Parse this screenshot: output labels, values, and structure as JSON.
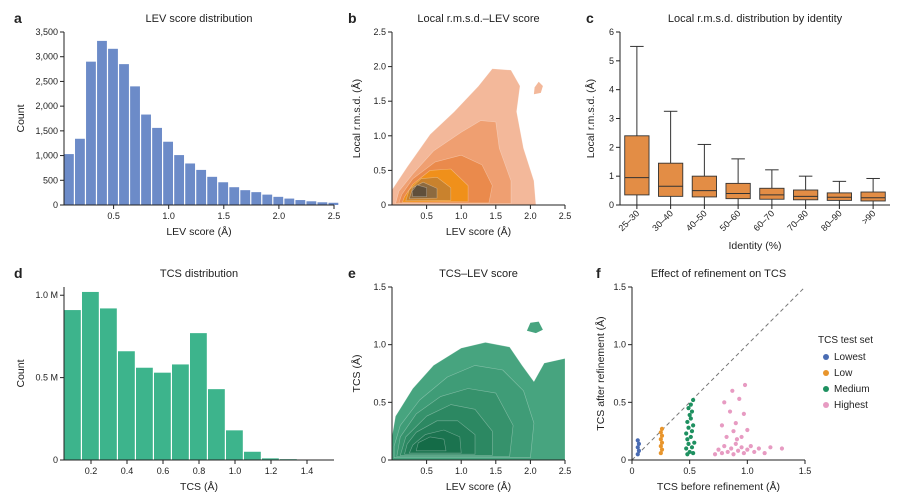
{
  "colors": {
    "blue": "#6c8bc8",
    "green": "#3db48c",
    "orange": "#e38d45",
    "lowest": "#4a6cb3",
    "low": "#e8952c",
    "medium": "#1e9060",
    "highest": "#e79bc2",
    "kde_orange": [
      "#f3b89a",
      "#ef9f71",
      "#ea8a4c",
      "#f0901a",
      "#c9822d",
      "#8d6a3f",
      "#5f4f3b"
    ],
    "kde_green": [
      "#47a47f",
      "#3f9c77",
      "#36926c",
      "#2c8862",
      "#237d58",
      "#1b734f",
      "#146b47"
    ]
  },
  "chart_data": [
    {
      "letter": "a",
      "type": "bar",
      "title": "LEV score distribution",
      "xlabel": "LEV score (Å)",
      "ylabel": "Count",
      "xlim": [
        0.05,
        2.5
      ],
      "ylim": [
        0,
        3500
      ],
      "bin_start": 0.05,
      "bin_width": 0.1,
      "values": [
        1030,
        1340,
        2900,
        3320,
        3160,
        2850,
        2400,
        1830,
        1560,
        1280,
        1010,
        840,
        710,
        570,
        460,
        360,
        300,
        260,
        210,
        165,
        130,
        100,
        75,
        55,
        45
      ],
      "xticks": [
        0.5,
        1.0,
        1.5,
        2.0,
        2.5
      ],
      "xtick_labels": [
        "0.5",
        "1.0",
        "1.5",
        "2.0",
        "2.5"
      ],
      "yticks": [
        0,
        500,
        1000,
        1500,
        2000,
        2500,
        3000,
        3500
      ],
      "ytick_labels": [
        "0",
        "500",
        "1,000",
        "1,500",
        "2,000",
        "2,500",
        "3,000",
        "3,500"
      ]
    },
    {
      "letter": "b",
      "type": "contour",
      "title": "Local r.m.s.d.–LEV score",
      "xlabel": "LEV score (Å)",
      "ylabel": "Local r.m.s.d. (Å)",
      "xlim": [
        0,
        2.5
      ],
      "ylim": [
        0,
        2.5
      ],
      "xticks": [
        0.5,
        1.0,
        1.5,
        2.0,
        2.5
      ],
      "xtick_labels": [
        "0.5",
        "1.0",
        "1.5",
        "2.0",
        "2.5"
      ],
      "yticks": [
        0,
        0.5,
        1.0,
        1.5,
        2.0,
        2.5
      ],
      "ytick_labels": [
        "0",
        "0.5",
        "1.0",
        "1.5",
        "2.0",
        "2.5"
      ],
      "levels": [
        [
          [
            0.0,
            0.0
          ],
          [
            2.08,
            0.0
          ],
          [
            2.05,
            0.35
          ],
          [
            1.9,
            0.82
          ],
          [
            1.8,
            1.35
          ],
          [
            1.85,
            1.72
          ],
          [
            1.72,
            1.95
          ],
          [
            1.45,
            1.97
          ],
          [
            1.25,
            1.72
          ],
          [
            0.9,
            1.35
          ],
          [
            0.55,
            1.02
          ],
          [
            0.22,
            0.55
          ],
          [
            0.0,
            0.22
          ]
        ],
        [
          [
            0.05,
            0.02
          ],
          [
            1.72,
            0.02
          ],
          [
            1.72,
            0.35
          ],
          [
            1.55,
            0.82
          ],
          [
            1.5,
            1.2
          ],
          [
            1.28,
            1.22
          ],
          [
            1.0,
            1.05
          ],
          [
            0.6,
            0.78
          ],
          [
            0.3,
            0.45
          ],
          [
            0.1,
            0.2
          ]
        ],
        [
          [
            0.1,
            0.03
          ],
          [
            1.4,
            0.03
          ],
          [
            1.45,
            0.28
          ],
          [
            1.3,
            0.58
          ],
          [
            1.0,
            0.72
          ],
          [
            0.62,
            0.62
          ],
          [
            0.3,
            0.38
          ],
          [
            0.14,
            0.15
          ]
        ],
        [
          [
            0.15,
            0.04
          ],
          [
            1.1,
            0.05
          ],
          [
            1.1,
            0.28
          ],
          [
            0.85,
            0.52
          ],
          [
            0.55,
            0.5
          ],
          [
            0.3,
            0.3
          ],
          [
            0.18,
            0.12
          ]
        ],
        [
          [
            0.2,
            0.06
          ],
          [
            0.85,
            0.07
          ],
          [
            0.85,
            0.25
          ],
          [
            0.65,
            0.4
          ],
          [
            0.42,
            0.38
          ],
          [
            0.25,
            0.22
          ]
        ],
        [
          [
            0.25,
            0.09
          ],
          [
            0.65,
            0.1
          ],
          [
            0.65,
            0.24
          ],
          [
            0.45,
            0.33
          ],
          [
            0.3,
            0.25
          ]
        ],
        [
          [
            0.3,
            0.12
          ],
          [
            0.5,
            0.12
          ],
          [
            0.5,
            0.25
          ],
          [
            0.36,
            0.29
          ],
          [
            0.29,
            0.2
          ]
        ]
      ],
      "blobs": [
        [
          [
            2.05,
            1.6
          ],
          [
            2.15,
            1.62
          ],
          [
            2.18,
            1.72
          ],
          [
            2.12,
            1.78
          ],
          [
            2.06,
            1.7
          ]
        ]
      ]
    },
    {
      "letter": "c",
      "type": "box",
      "title": "Local r.m.s.d. distribution by identity",
      "xlabel": "Identity (%)",
      "ylabel": "Local r.m.s.d. (Å)",
      "ylim": [
        0,
        6
      ],
      "yticks": [
        0,
        1,
        2,
        3,
        4,
        5,
        6
      ],
      "ytick_labels": [
        "0",
        "1",
        "2",
        "3",
        "4",
        "5",
        "6"
      ],
      "categories": [
        "25–30",
        "30–40",
        "40–50",
        "50–60",
        "60–70",
        "70–80",
        "80–90",
        ">90"
      ],
      "boxes": [
        {
          "low": 0.0,
          "q1": 0.35,
          "median": 0.95,
          "q3": 2.4,
          "high": 5.5
        },
        {
          "low": 0.0,
          "q1": 0.3,
          "median": 0.65,
          "q3": 1.45,
          "high": 3.25
        },
        {
          "low": 0.0,
          "q1": 0.28,
          "median": 0.5,
          "q3": 1.0,
          "high": 2.1
        },
        {
          "low": 0.0,
          "q1": 0.22,
          "median": 0.4,
          "q3": 0.75,
          "high": 1.6
        },
        {
          "low": 0.0,
          "q1": 0.2,
          "median": 0.35,
          "q3": 0.58,
          "high": 1.22
        },
        {
          "low": 0.0,
          "q1": 0.18,
          "median": 0.3,
          "q3": 0.52,
          "high": 1.0
        },
        {
          "low": 0.0,
          "q1": 0.16,
          "median": 0.27,
          "q3": 0.42,
          "high": 0.82
        },
        {
          "low": 0.0,
          "q1": 0.14,
          "median": 0.25,
          "q3": 0.45,
          "high": 0.92
        }
      ]
    },
    {
      "letter": "d",
      "type": "bar",
      "title": "TCS distribution",
      "xlabel": "TCS (Å)",
      "ylabel": "Count",
      "xlim": [
        0.05,
        1.55
      ],
      "ylim": [
        0,
        1.05
      ],
      "bin_start": 0.05,
      "bin_width": 0.1,
      "values": [
        0.91,
        1.02,
        0.92,
        0.66,
        0.56,
        0.53,
        0.58,
        0.77,
        0.43,
        0.18,
        0.05,
        0.01,
        0.005
      ],
      "xticks": [
        0.2,
        0.4,
        0.6,
        0.8,
        1.0,
        1.2,
        1.4
      ],
      "xtick_labels": [
        "0.2",
        "0.4",
        "0.6",
        "0.8",
        "1.0",
        "1.2",
        "1.4"
      ],
      "yticks": [
        0,
        0.5,
        1.0
      ],
      "ytick_labels": [
        "0",
        "0.5 M",
        "1.0 M"
      ]
    },
    {
      "letter": "e",
      "type": "contour",
      "title": "TCS–LEV score",
      "xlabel": "LEV score (Å)",
      "ylabel": "TCS (Å)",
      "xlim": [
        0,
        2.5
      ],
      "ylim": [
        0,
        1.5
      ],
      "xticks": [
        0.5,
        1.0,
        1.5,
        2.0,
        2.5
      ],
      "xtick_labels": [
        "0.5",
        "1.0",
        "1.5",
        "2.0",
        "2.5"
      ],
      "yticks": [
        0,
        0.5,
        1.0,
        1.5
      ],
      "ytick_labels": [
        "0",
        "0.5",
        "1.0",
        "1.5"
      ],
      "levels": [
        [
          [
            0.0,
            0.0
          ],
          [
            2.5,
            0.0
          ],
          [
            2.5,
            0.88
          ],
          [
            2.2,
            0.84
          ],
          [
            2.05,
            0.68
          ],
          [
            1.88,
            0.82
          ],
          [
            1.7,
            0.98
          ],
          [
            1.35,
            1.02
          ],
          [
            1.0,
            0.97
          ],
          [
            0.6,
            0.82
          ],
          [
            0.3,
            0.62
          ],
          [
            0.05,
            0.38
          ],
          [
            0.0,
            0.2
          ]
        ],
        [
          [
            0.03,
            0.02
          ],
          [
            2.0,
            0.02
          ],
          [
            2.05,
            0.32
          ],
          [
            1.9,
            0.6
          ],
          [
            1.6,
            0.78
          ],
          [
            1.2,
            0.82
          ],
          [
            0.8,
            0.72
          ],
          [
            0.4,
            0.52
          ],
          [
            0.12,
            0.3
          ],
          [
            0.03,
            0.12
          ]
        ],
        [
          [
            0.07,
            0.03
          ],
          [
            1.7,
            0.03
          ],
          [
            1.75,
            0.3
          ],
          [
            1.5,
            0.58
          ],
          [
            1.1,
            0.62
          ],
          [
            0.7,
            0.55
          ],
          [
            0.35,
            0.4
          ],
          [
            0.12,
            0.2
          ]
        ],
        [
          [
            0.12,
            0.04
          ],
          [
            1.45,
            0.04
          ],
          [
            1.45,
            0.25
          ],
          [
            1.2,
            0.44
          ],
          [
            0.85,
            0.48
          ],
          [
            0.5,
            0.38
          ],
          [
            0.2,
            0.2
          ]
        ],
        [
          [
            0.18,
            0.05
          ],
          [
            1.2,
            0.05
          ],
          [
            1.2,
            0.22
          ],
          [
            0.95,
            0.34
          ],
          [
            0.65,
            0.34
          ],
          [
            0.35,
            0.24
          ],
          [
            0.22,
            0.14
          ]
        ],
        [
          [
            0.25,
            0.06
          ],
          [
            1.0,
            0.06
          ],
          [
            0.98,
            0.2
          ],
          [
            0.75,
            0.26
          ],
          [
            0.48,
            0.22
          ],
          [
            0.3,
            0.13
          ]
        ],
        [
          [
            0.35,
            0.08
          ],
          [
            0.78,
            0.08
          ],
          [
            0.75,
            0.18
          ],
          [
            0.55,
            0.2
          ],
          [
            0.38,
            0.15
          ]
        ]
      ],
      "blobs": [
        [
          [
            1.95,
            1.12
          ],
          [
            2.08,
            1.1
          ],
          [
            2.18,
            1.13
          ],
          [
            2.12,
            1.2
          ],
          [
            2.0,
            1.19
          ]
        ]
      ]
    },
    {
      "letter": "f",
      "type": "scatter",
      "title": "Effect of refinement on TCS",
      "xlabel": "TCS before refinement (Å)",
      "ylabel": "TCS after refinement (Å)",
      "xlim": [
        0,
        1.5
      ],
      "ylim": [
        0,
        1.5
      ],
      "xticks": [
        0,
        0.5,
        1.0,
        1.5
      ],
      "xtick_labels": [
        "0",
        "0.5",
        "1.0",
        "1.5"
      ],
      "yticks": [
        0,
        0.5,
        1.0,
        1.5
      ],
      "ytick_labels": [
        "0",
        "0.5",
        "1.0",
        "1.5"
      ],
      "legend_title": "TCS test set",
      "legend_position": "right",
      "series": [
        {
          "name": "Lowest",
          "color_key": "lowest",
          "points": [
            [
              0.05,
              0.05
            ],
            [
              0.06,
              0.08
            ],
            [
              0.05,
              0.11
            ],
            [
              0.06,
              0.14
            ],
            [
              0.05,
              0.17
            ]
          ]
        },
        {
          "name": "Low",
          "color_key": "low",
          "points": [
            [
              0.25,
              0.06
            ],
            [
              0.26,
              0.09
            ],
            [
              0.25,
              0.12
            ],
            [
              0.26,
              0.15
            ],
            [
              0.25,
              0.18
            ],
            [
              0.26,
              0.21
            ],
            [
              0.25,
              0.24
            ],
            [
              0.26,
              0.27
            ]
          ]
        },
        {
          "name": "Medium",
          "color_key": "medium",
          "points": [
            [
              0.48,
              0.05
            ],
            [
              0.5,
              0.07
            ],
            [
              0.53,
              0.06
            ],
            [
              0.47,
              0.1
            ],
            [
              0.52,
              0.11
            ],
            [
              0.49,
              0.14
            ],
            [
              0.54,
              0.15
            ],
            [
              0.48,
              0.18
            ],
            [
              0.51,
              0.2
            ],
            [
              0.47,
              0.23
            ],
            [
              0.52,
              0.25
            ],
            [
              0.49,
              0.28
            ],
            [
              0.53,
              0.3
            ],
            [
              0.48,
              0.33
            ],
            [
              0.51,
              0.36
            ],
            [
              0.5,
              0.39
            ],
            [
              0.52,
              0.42
            ],
            [
              0.49,
              0.45
            ],
            [
              0.51,
              0.48
            ],
            [
              0.53,
              0.52
            ]
          ]
        },
        {
          "name": "Highest",
          "color_key": "highest",
          "points": [
            [
              0.72,
              0.05
            ],
            [
              0.75,
              0.09
            ],
            [
              0.78,
              0.06
            ],
            [
              0.8,
              0.12
            ],
            [
              0.83,
              0.07
            ],
            [
              0.86,
              0.1
            ],
            [
              0.88,
              0.05
            ],
            [
              0.9,
              0.14
            ],
            [
              0.92,
              0.08
            ],
            [
              0.95,
              0.11
            ],
            [
              0.97,
              0.06
            ],
            [
              1.0,
              0.09
            ],
            [
              1.03,
              0.12
            ],
            [
              1.06,
              0.07
            ],
            [
              1.1,
              0.1
            ],
            [
              1.15,
              0.06
            ],
            [
              1.2,
              0.11
            ],
            [
              1.3,
              0.1
            ],
            [
              0.82,
              0.2
            ],
            [
              0.88,
              0.25
            ],
            [
              0.95,
              0.2
            ],
            [
              0.78,
              0.3
            ],
            [
              0.9,
              0.32
            ],
            [
              1.0,
              0.26
            ],
            [
              0.85,
              0.42
            ],
            [
              0.97,
              0.4
            ],
            [
              0.8,
              0.5
            ],
            [
              0.93,
              0.53
            ],
            [
              0.87,
              0.6
            ],
            [
              0.98,
              0.65
            ],
            [
              0.91,
              0.18
            ]
          ]
        }
      ]
    }
  ]
}
